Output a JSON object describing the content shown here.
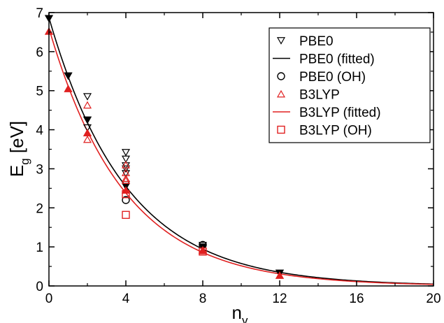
{
  "chart_data": {
    "type": "scatter",
    "xlabel": {
      "main": "n",
      "sub": "v"
    },
    "ylabel": {
      "main": "E",
      "sub": "g",
      "unit": " [eV]"
    },
    "xlim": [
      0,
      20
    ],
    "ylim": [
      0,
      7
    ],
    "xticks": [
      "0",
      "4",
      "8",
      "12",
      "16",
      "20"
    ],
    "yticks": [
      "0",
      "1",
      "2",
      "3",
      "4",
      "5",
      "6",
      "7"
    ],
    "grid": false,
    "legend_position": "top-right",
    "colors": {
      "pbe0": "#000000",
      "b3lyp": "#e02020"
    },
    "legend": [
      {
        "label": "PBE0",
        "marker": "triangle-down-open",
        "color": "#000000"
      },
      {
        "label": "PBE0 (fitted)",
        "marker": "line",
        "color": "#000000"
      },
      {
        "label": "PBE0 (OH)",
        "marker": "circle-open",
        "color": "#000000"
      },
      {
        "label": "B3LYP",
        "marker": "triangle-up-open",
        "color": "#e02020"
      },
      {
        "label": "B3LYP (fitted)",
        "marker": "line",
        "color": "#e02020"
      },
      {
        "label": "B3LYP (OH)",
        "marker": "square-open",
        "color": "#e02020"
      }
    ],
    "series": [
      {
        "name": "PBE0",
        "marker": "triangle-down-open",
        "color": "#000000",
        "points": [
          [
            0,
            6.85
          ],
          [
            1,
            5.38
          ],
          [
            2,
            4.85
          ],
          [
            2,
            4.25
          ],
          [
            2,
            4.05
          ],
          [
            4,
            3.42
          ],
          [
            4,
            3.25
          ],
          [
            4,
            3.08
          ],
          [
            4,
            3.0
          ],
          [
            4,
            2.88
          ],
          [
            4,
            2.6
          ],
          [
            8,
            1.04
          ],
          [
            12,
            0.33
          ]
        ]
      },
      {
        "name": "PBE0 (filled)",
        "marker": "triangle-down-filled",
        "color": "#000000",
        "points": [
          [
            0,
            6.85
          ],
          [
            1,
            5.38
          ],
          [
            2,
            4.25
          ],
          [
            4,
            2.55
          ],
          [
            8,
            1.0
          ],
          [
            12,
            0.33
          ]
        ]
      },
      {
        "name": "PBE0 (OH)",
        "marker": "circle-open",
        "color": "#000000",
        "points": [
          [
            4,
            2.2
          ],
          [
            8,
            1.05
          ]
        ]
      },
      {
        "name": "B3LYP",
        "marker": "triangle-up-open",
        "color": "#e02020",
        "points": [
          [
            0,
            6.52
          ],
          [
            1,
            5.05
          ],
          [
            2,
            4.63
          ],
          [
            2,
            3.92
          ],
          [
            2,
            3.75
          ],
          [
            4,
            3.1
          ],
          [
            4,
            2.9
          ],
          [
            4,
            2.75
          ],
          [
            4,
            2.7
          ],
          [
            4,
            2.45
          ],
          [
            8,
            0.92
          ],
          [
            12,
            0.27
          ]
        ]
      },
      {
        "name": "B3LYP (filled)",
        "marker": "triangle-up-filled",
        "color": "#e02020",
        "points": [
          [
            0,
            6.52
          ],
          [
            1,
            5.05
          ],
          [
            2,
            3.92
          ],
          [
            4,
            2.45
          ],
          [
            8,
            0.9
          ],
          [
            12,
            0.27
          ]
        ]
      },
      {
        "name": "B3LYP (OH)",
        "marker": "square-open",
        "color": "#e02020",
        "points": [
          [
            4,
            1.82
          ],
          [
            4,
            2.35
          ],
          [
            8,
            0.88
          ]
        ]
      }
    ],
    "fitted": [
      {
        "name": "PBE0 (fitted)",
        "color": "#000000",
        "a": 6.87,
        "k": 0.248
      },
      {
        "name": "B3LYP (fitted)",
        "color": "#e02020",
        "a": 6.6,
        "k": 0.255
      }
    ]
  }
}
